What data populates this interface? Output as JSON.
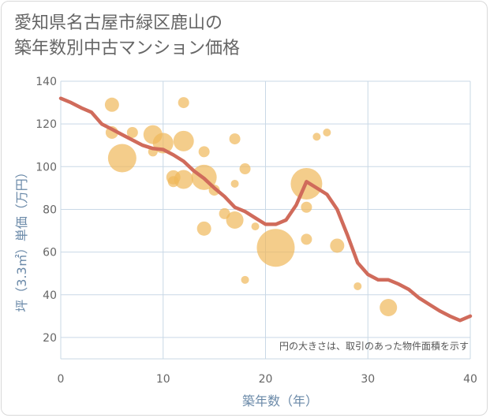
{
  "title_lines": [
    "愛知県名古屋市緑区鹿山の",
    "築年数別中古マンション価格"
  ],
  "colors": {
    "bubble": "#f0b85a",
    "line": "#d06b5b",
    "grid": "#c9d8e6",
    "axis_text": "#666666",
    "axis_label": "#6a89a8"
  },
  "chart_data": {
    "type": "scatter",
    "xlabel": "築年数（年）",
    "ylabel": "坪（3.3㎡）単価（万円）",
    "note": "円の大きさは、取引のあった物件面積を示す",
    "xlim": [
      0,
      40
    ],
    "ylim": [
      10,
      140
    ],
    "xticks": [
      0,
      10,
      20,
      30,
      40
    ],
    "yticks": [
      20,
      40,
      60,
      80,
      100,
      120,
      140
    ],
    "grid": true,
    "bubbles": [
      {
        "x": 5,
        "y": 129,
        "size": 9
      },
      {
        "x": 5,
        "y": 116,
        "size": 8
      },
      {
        "x": 6,
        "y": 104,
        "size": 18
      },
      {
        "x": 7,
        "y": 116,
        "size": 7
      },
      {
        "x": 9,
        "y": 107,
        "size": 6
      },
      {
        "x": 9,
        "y": 115,
        "size": 12
      },
      {
        "x": 10,
        "y": 111,
        "size": 13
      },
      {
        "x": 11,
        "y": 93,
        "size": 7
      },
      {
        "x": 11,
        "y": 95,
        "size": 9
      },
      {
        "x": 12,
        "y": 112,
        "size": 13
      },
      {
        "x": 12,
        "y": 94,
        "size": 12
      },
      {
        "x": 12,
        "y": 130,
        "size": 7
      },
      {
        "x": 14,
        "y": 95,
        "size": 16
      },
      {
        "x": 14,
        "y": 107,
        "size": 7
      },
      {
        "x": 15,
        "y": 89,
        "size": 7
      },
      {
        "x": 14,
        "y": 71,
        "size": 9
      },
      {
        "x": 16,
        "y": 78,
        "size": 7
      },
      {
        "x": 17,
        "y": 75,
        "size": 11
      },
      {
        "x": 17,
        "y": 113,
        "size": 7
      },
      {
        "x": 17,
        "y": 92,
        "size": 5
      },
      {
        "x": 18,
        "y": 99,
        "size": 7
      },
      {
        "x": 18,
        "y": 47,
        "size": 5
      },
      {
        "x": 19,
        "y": 72,
        "size": 5
      },
      {
        "x": 21,
        "y": 62,
        "size": 24
      },
      {
        "x": 24,
        "y": 92,
        "size": 20
      },
      {
        "x": 24,
        "y": 81,
        "size": 7
      },
      {
        "x": 24,
        "y": 66,
        "size": 7
      },
      {
        "x": 25,
        "y": 114,
        "size": 5
      },
      {
        "x": 26,
        "y": 116,
        "size": 5
      },
      {
        "x": 27,
        "y": 63,
        "size": 9
      },
      {
        "x": 29,
        "y": 44,
        "size": 5
      },
      {
        "x": 32,
        "y": 34,
        "size": 11
      }
    ],
    "trend": {
      "x": [
        0,
        1,
        2,
        3,
        4,
        5,
        6,
        7,
        8,
        9,
        10,
        11,
        12,
        13,
        14,
        15,
        16,
        17,
        18,
        19,
        20,
        21,
        22,
        23,
        24,
        25,
        26,
        27,
        28,
        29,
        30,
        31,
        32,
        33,
        34,
        35,
        36,
        37,
        38,
        39,
        40
      ],
      "y": [
        132,
        130,
        127.5,
        125.5,
        120,
        117.5,
        115,
        112.5,
        110,
        108.5,
        108,
        105.5,
        102.5,
        98,
        94.5,
        90,
        86,
        81,
        79,
        76,
        73,
        73,
        75,
        82,
        93,
        90,
        87,
        80,
        68,
        55,
        49.5,
        47,
        47,
        45,
        42.5,
        38.5,
        35.5,
        32.5,
        30,
        28,
        30
      ]
    }
  }
}
